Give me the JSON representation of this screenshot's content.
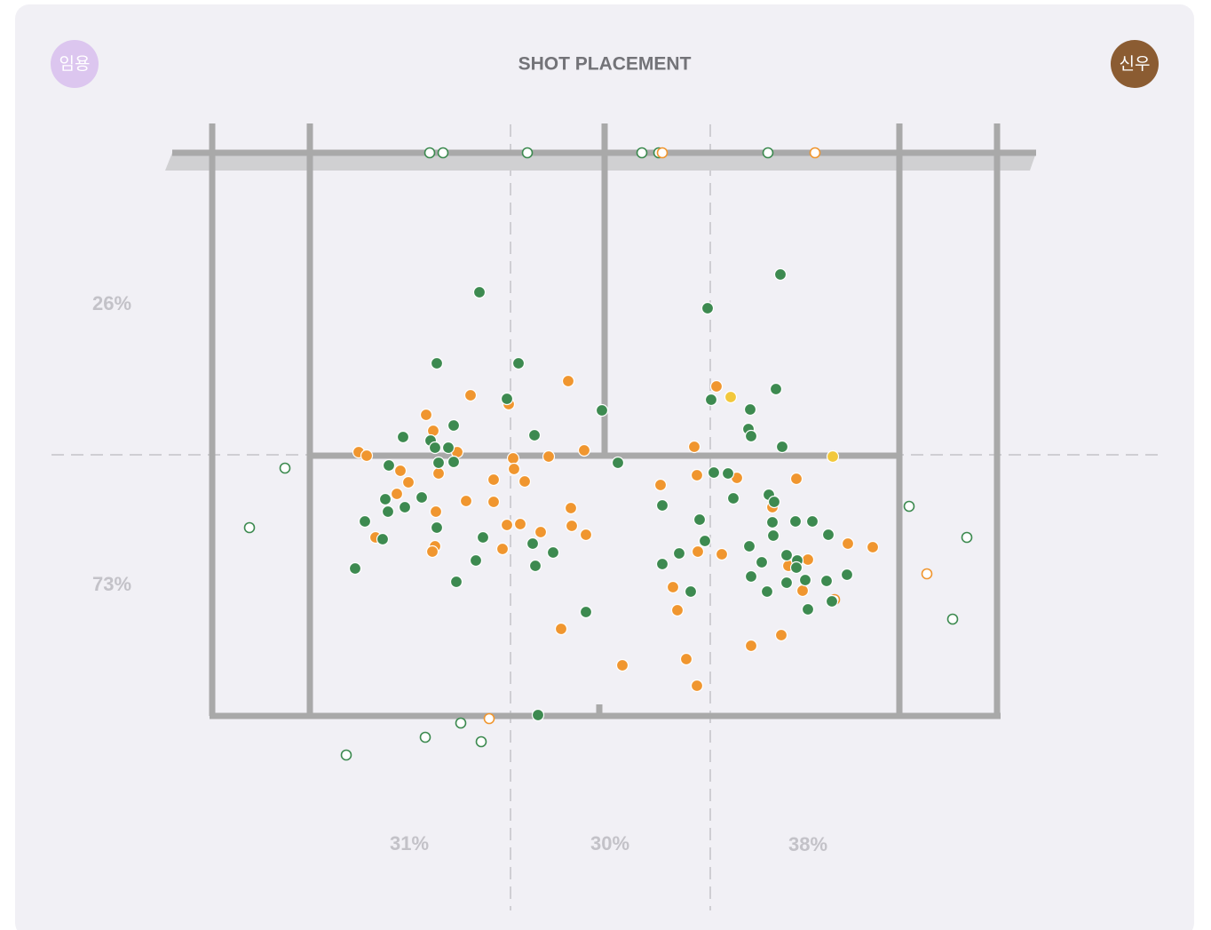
{
  "header": {
    "title": "SHOT PLACEMENT",
    "player_left": "임용",
    "player_right": "신우"
  },
  "zones": {
    "front": "26%",
    "back": "73%",
    "left": "31%",
    "middle": "30%",
    "right": "38%"
  }
}
